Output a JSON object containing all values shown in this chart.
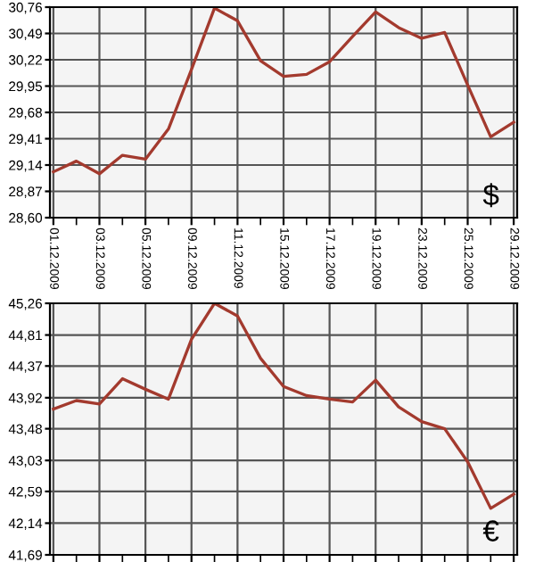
{
  "chart_data": [
    {
      "type": "line",
      "categories": [
        "01.12.2009",
        null,
        "03.12.2009",
        null,
        "05.12.2009",
        null,
        "09.12.2009",
        null,
        "11.12.2009",
        null,
        "15.12.2009",
        null,
        "17.12.2009",
        null,
        "19.12.2009",
        null,
        "23.12.2009",
        null,
        "25.12.2009",
        null,
        "29.12.2009"
      ],
      "series": [
        {
          "color": "#a33a2e",
          "values": [
            29.07,
            29.18,
            29.05,
            29.24,
            29.2,
            29.51,
            30.12,
            30.75,
            30.62,
            30.21,
            30.05,
            30.07,
            30.2,
            30.46,
            30.71,
            30.55,
            30.44,
            30.5,
            29.96,
            29.43,
            29.58
          ]
        }
      ],
      "ylim": [
        28.6,
        30.76
      ],
      "yticks": [
        {
          "value": 28.6,
          "label": "28,60"
        },
        {
          "value": 28.87,
          "label": "28,87"
        },
        {
          "value": 29.14,
          "label": "29,14"
        },
        {
          "value": 29.41,
          "label": "29,41"
        },
        {
          "value": 29.68,
          "label": "29,68"
        },
        {
          "value": 29.95,
          "label": "29,95"
        },
        {
          "value": 30.22,
          "label": "30,22"
        },
        {
          "value": 30.49,
          "label": "30,49"
        },
        {
          "value": 30.76,
          "label": "30,76"
        }
      ],
      "grid": true,
      "annotations": [
        "$"
      ]
    },
    {
      "type": "line",
      "categories": [
        "01.12.2009",
        null,
        "03.12.2009",
        null,
        "05.12.2009",
        null,
        "09.12.2009",
        null,
        "11.12.2009",
        null,
        "15.12.2009",
        null,
        "17.12.2009",
        null,
        "19.12.2009",
        null,
        "23.12.2009",
        null,
        "25.12.2009",
        null,
        "29.12.2009"
      ],
      "series": [
        {
          "color": "#a33a2e",
          "values": [
            43.76,
            43.88,
            43.83,
            44.19,
            44.04,
            43.9,
            44.75,
            45.26,
            45.08,
            44.48,
            44.08,
            43.95,
            43.9,
            43.86,
            44.17,
            43.79,
            43.58,
            43.48,
            43.01,
            42.35,
            42.55
          ]
        }
      ],
      "ylim": [
        41.69,
        45.26
      ],
      "yticks": [
        {
          "value": 41.69,
          "label": "41,69"
        },
        {
          "value": 42.14,
          "label": "42,14"
        },
        {
          "value": 42.59,
          "label": "42,59"
        },
        {
          "value": 43.03,
          "label": "43,03"
        },
        {
          "value": 43.48,
          "label": "43,48"
        },
        {
          "value": 43.92,
          "label": "43,92"
        },
        {
          "value": 44.37,
          "label": "44,37"
        },
        {
          "value": 44.81,
          "label": "44,81"
        },
        {
          "value": 45.26,
          "label": "45,26"
        }
      ],
      "grid": true,
      "tick_labels": "y",
      "annotations": [
        "€"
      ]
    }
  ]
}
